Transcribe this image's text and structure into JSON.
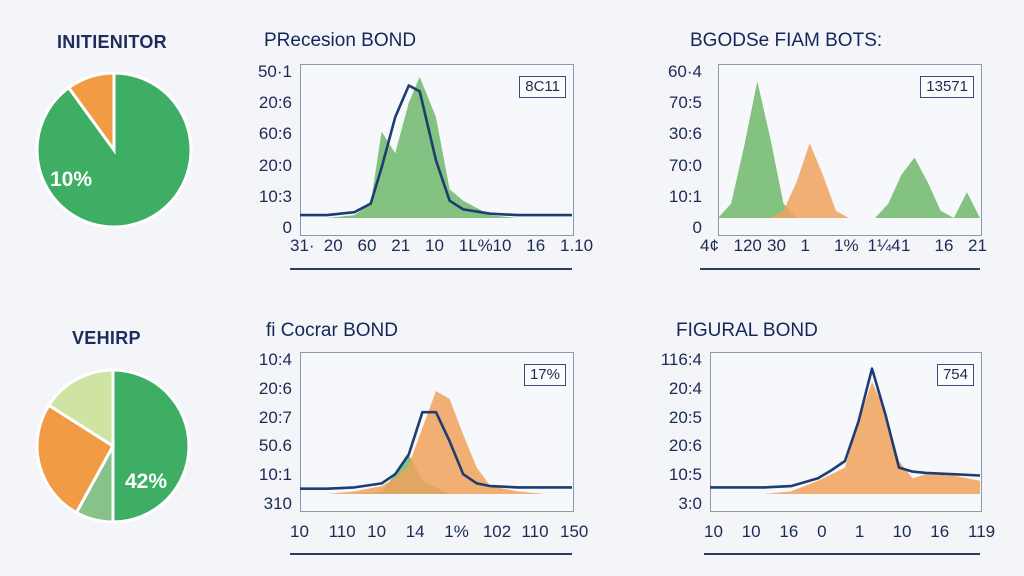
{
  "colors": {
    "green": "#3dae63",
    "orange": "#f29b45",
    "light_green": "#cfe3a2",
    "mid_green": "#86c28a",
    "navy": "#1d3d73",
    "area_green": "#6fb86a",
    "area_orange": "#f0a25c"
  },
  "pies": [
    {
      "title": "INITIENITOR",
      "label": "10%"
    },
    {
      "title": "VEHIRP",
      "label": "42%"
    }
  ],
  "panels": [
    {
      "title": "PRecesion BOND",
      "badge": "8C11",
      "y_ticks": [
        "50·1",
        "20:6",
        "60:6",
        "20:0",
        "10:3",
        "0"
      ],
      "x_ticks": [
        "31·",
        "20",
        "60",
        "21",
        "10",
        "1L%",
        "10",
        "16",
        "1.10"
      ]
    },
    {
      "title": "BGODSe FIAM BOTS:",
      "badge": "13571",
      "y_ticks": [
        "60·4",
        "70:5",
        "30:6",
        "70:0",
        "10:1",
        "0"
      ],
      "x_ticks": [
        "4¢",
        "120",
        "30",
        "1",
        "1%",
        "1¼4",
        "1",
        "16",
        "21"
      ]
    },
    {
      "title": "fi Cocrar BOND",
      "badge": "17%",
      "y_ticks": [
        "10:4",
        "20:6",
        "20:7",
        "50.6",
        "10:1",
        "310"
      ],
      "x_ticks": [
        "10",
        "110",
        "10",
        "14",
        "1%",
        "102",
        "110",
        "150"
      ]
    },
    {
      "title": "FIGURAL BOND",
      "badge": "754",
      "y_ticks": [
        "116:4",
        "20:4",
        "20:5",
        "20:6",
        "10:5",
        "3:0"
      ],
      "x_ticks": [
        "10",
        "10",
        "16",
        "0",
        "1",
        "10",
        "16",
        "119"
      ]
    }
  ],
  "chart_data": [
    {
      "type": "pie",
      "title": "INITIENITOR",
      "slices": [
        {
          "value": 90,
          "color": "#3dae63"
        },
        {
          "value": 10,
          "color": "#f29b45"
        }
      ],
      "data_labels": [
        "10%"
      ]
    },
    {
      "type": "pie",
      "title": "VEHIRP",
      "slices": [
        {
          "value": 50,
          "color": "#3dae63"
        },
        {
          "value": 8,
          "color": "#86c28a"
        },
        {
          "value": 26,
          "color": "#f29b45"
        },
        {
          "value": 16,
          "color": "#cfe3a2"
        }
      ],
      "data_labels": [
        "42%"
      ]
    },
    {
      "type": "area",
      "title": "PRecesion BOND",
      "ylim": [
        0,
        1
      ],
      "x": [
        0,
        0.1,
        0.2,
        0.26,
        0.3,
        0.35,
        0.4,
        0.44,
        0.5,
        0.55,
        0.6,
        0.7,
        0.8,
        0.9,
        1.0
      ],
      "series": [
        {
          "kind": "area",
          "color": "#6fb86a",
          "values": [
            0,
            0,
            0.02,
            0.1,
            0.6,
            0.45,
            0.8,
            0.98,
            0.7,
            0.2,
            0.12,
            0.02,
            0,
            0,
            0
          ]
        },
        {
          "kind": "line",
          "color": "#1d3d73",
          "values": [
            0.02,
            0.02,
            0.04,
            0.1,
            0.35,
            0.7,
            0.92,
            0.88,
            0.4,
            0.12,
            0.06,
            0.03,
            0.02,
            0.02,
            0.02
          ]
        }
      ]
    },
    {
      "type": "area",
      "title": "BGODSe FIAM BOTS:",
      "ylim": [
        0,
        1
      ],
      "x": [
        0,
        0.05,
        0.1,
        0.15,
        0.2,
        0.25,
        0.3,
        0.35,
        0.4,
        0.45,
        0.5,
        0.55,
        0.6,
        0.65,
        0.7,
        0.75,
        0.8,
        0.85,
        0.9,
        0.95,
        1.0
      ],
      "series": [
        {
          "kind": "area",
          "color": "#6fb86a",
          "values": [
            0,
            0.1,
            0.5,
            0.95,
            0.55,
            0.1,
            0,
            0,
            0,
            0,
            0,
            0,
            0,
            0.1,
            0.3,
            0.42,
            0.25,
            0.05,
            0,
            0.18,
            0
          ]
        },
        {
          "kind": "area",
          "color": "#f0a25c",
          "values": [
            0,
            0,
            0,
            0,
            0,
            0.05,
            0.25,
            0.52,
            0.3,
            0.05,
            0,
            0,
            0,
            0,
            0,
            0,
            0,
            0,
            0,
            0,
            0
          ]
        }
      ]
    },
    {
      "type": "area",
      "title": "fi Cocrar BOND",
      "ylim": [
        0,
        1
      ],
      "x": [
        0,
        0.1,
        0.2,
        0.3,
        0.35,
        0.4,
        0.45,
        0.5,
        0.55,
        0.6,
        0.65,
        0.7,
        0.8,
        0.9,
        1.0
      ],
      "series": [
        {
          "kind": "area",
          "color": "#6fb86a",
          "values": [
            0,
            0,
            0,
            0.02,
            0.15,
            0.3,
            0.1,
            0.05,
            0,
            0,
            0,
            0,
            0,
            0,
            0
          ]
        },
        {
          "kind": "area",
          "color": "#f0a25c",
          "values": [
            0,
            0,
            0.02,
            0.06,
            0.12,
            0.22,
            0.5,
            0.78,
            0.72,
            0.45,
            0.2,
            0.06,
            0.02,
            0,
            0
          ]
        },
        {
          "kind": "line",
          "color": "#1d3d73",
          "values": [
            0.04,
            0.04,
            0.05,
            0.08,
            0.15,
            0.3,
            0.62,
            0.62,
            0.4,
            0.15,
            0.08,
            0.06,
            0.05,
            0.05,
            0.05
          ]
        }
      ]
    },
    {
      "type": "area",
      "title": "FIGURAL BOND",
      "ylim": [
        0,
        1
      ],
      "x": [
        0,
        0.1,
        0.2,
        0.3,
        0.4,
        0.45,
        0.5,
        0.55,
        0.6,
        0.65,
        0.7,
        0.75,
        0.8,
        0.9,
        1.0
      ],
      "series": [
        {
          "kind": "area",
          "color": "#f0a25c",
          "values": [
            0,
            0,
            0,
            0.02,
            0.1,
            0.15,
            0.2,
            0.55,
            0.85,
            0.62,
            0.25,
            0.12,
            0.15,
            0.14,
            0.1
          ]
        },
        {
          "kind": "line",
          "color": "#1d3d73",
          "values": [
            0.05,
            0.05,
            0.05,
            0.06,
            0.12,
            0.18,
            0.25,
            0.55,
            0.95,
            0.6,
            0.2,
            0.17,
            0.16,
            0.15,
            0.14
          ]
        }
      ]
    }
  ]
}
